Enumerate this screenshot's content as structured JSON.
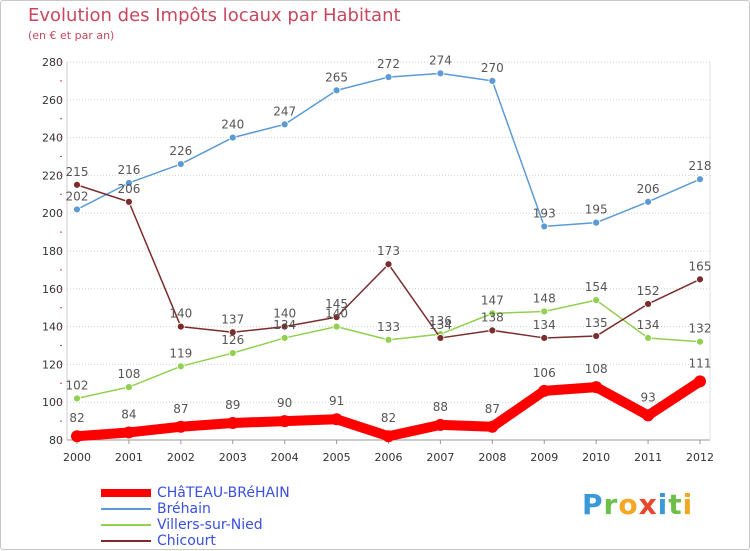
{
  "header": {
    "title": "Evolution des Impôts locaux par Habitant",
    "subtitle": "(en € et par an)"
  },
  "logo": {
    "text": "Proxiti",
    "letters": [
      {
        "ch": "P",
        "color": "#3a9ad9"
      },
      {
        "ch": "r",
        "color": "#6cc04a"
      },
      {
        "ch": "o",
        "color": "#f5a623"
      },
      {
        "ch": "x",
        "color": "#e8452c"
      },
      {
        "ch": "i",
        "color": "#3a9ad9"
      },
      {
        "ch": "t",
        "color": "#6cc04a"
      },
      {
        "ch": "i",
        "color": "#f5a623"
      }
    ]
  },
  "chart_data": {
    "type": "line",
    "title": "Evolution des Impôts locaux par Habitant",
    "subtitle": "(en € et par an)",
    "xlabel": "",
    "ylabel": "",
    "categories": [
      "2000",
      "2001",
      "2002",
      "2003",
      "2004",
      "2005",
      "2006",
      "2007",
      "2008",
      "2009",
      "2010",
      "2011",
      "2012"
    ],
    "ylim": [
      80,
      280
    ],
    "yticks": [
      80,
      100,
      120,
      140,
      160,
      180,
      200,
      220,
      240,
      260,
      280
    ],
    "grid": "horizontal",
    "legend_position": "bottom-left",
    "series": [
      {
        "name": "CHâTEAU-BRéHAIN",
        "color": "#ff0000",
        "values": [
          82,
          84,
          87,
          89,
          90,
          91,
          82,
          88,
          87,
          106,
          108,
          93,
          111
        ],
        "labels": [
          "82",
          "84",
          "87",
          "89",
          "90",
          "91",
          "82",
          "88",
          "87",
          "106",
          "108",
          "93",
          "111"
        ]
      },
      {
        "name": "Bréhain",
        "color": "#5b9bd5",
        "values": [
          202,
          216,
          226,
          240,
          247,
          265,
          272,
          274,
          270,
          193,
          195,
          206,
          218
        ],
        "labels": [
          "202",
          "216",
          "226",
          "240",
          "247",
          "265",
          "272",
          "274",
          "270",
          "193",
          "195",
          "206",
          "218"
        ]
      },
      {
        "name": "Villers-sur-Nied",
        "color": "#92d050",
        "values": [
          102,
          108,
          119,
          126,
          134,
          140,
          133,
          136,
          147,
          148,
          154,
          134,
          132
        ],
        "labels": [
          "102",
          "108",
          "119",
          "126",
          "134",
          "140",
          "133",
          "136",
          "147",
          "148",
          "154",
          "134",
          "132"
        ]
      },
      {
        "name": "Chicourt",
        "color": "#7b2c2c",
        "values": [
          215,
          206,
          140,
          137,
          140,
          145,
          173,
          134,
          138,
          134,
          135,
          152,
          165
        ],
        "labels": [
          "215",
          "206",
          "140",
          "137",
          "140",
          "145",
          "173",
          "134",
          "138",
          "134",
          "135",
          "152",
          "165"
        ]
      }
    ]
  }
}
